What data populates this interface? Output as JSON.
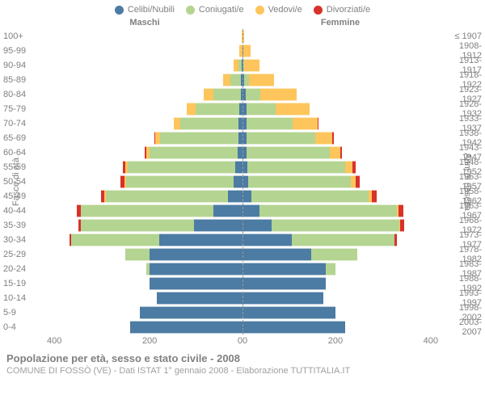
{
  "legend": [
    {
      "label": "Celibi/Nubili",
      "color": "#4c7ba3"
    },
    {
      "label": "Coniugati/e",
      "color": "#b4d491"
    },
    {
      "label": "Vedovi/e",
      "color": "#fdc55b"
    },
    {
      "label": "Divorziati/e",
      "color": "#d8322a"
    }
  ],
  "headers": {
    "male": "Maschi",
    "female": "Femmine"
  },
  "y_left_label": "Fasce di età",
  "y_right_label": "Anni di nascita",
  "x_ticks_left": [
    "400",
    "200",
    "0"
  ],
  "x_ticks_right": [
    "0",
    "200",
    "400"
  ],
  "x_max": 400,
  "title": "Popolazione per età, sesso e stato civile - 2008",
  "subtitle": "COMUNE DI FOSSÒ (VE) - Dati ISTAT 1° gennaio 2008 - Elaborazione TUTTITALIA.IT",
  "colors": {
    "celibi": "#4c7ba3",
    "coniugati": "#b4d491",
    "vedovi": "#fdc55b",
    "divorziati": "#d8322a",
    "text": "#808080",
    "bg": "#ffffff",
    "center_line": "#999999"
  },
  "rows": [
    {
      "age": "100+",
      "year": "≤ 1907",
      "m": {
        "cel": 0,
        "con": 0,
        "ved": 2,
        "div": 0
      },
      "f": {
        "cel": 0,
        "con": 0,
        "ved": 3,
        "div": 0
      }
    },
    {
      "age": "95-99",
      "year": "1908-1912",
      "m": {
        "cel": 0,
        "con": 0,
        "ved": 6,
        "div": 0
      },
      "f": {
        "cel": 2,
        "con": 0,
        "ved": 14,
        "div": 0
      }
    },
    {
      "age": "90-94",
      "year": "1913-1917",
      "m": {
        "cel": 2,
        "con": 6,
        "ved": 10,
        "div": 0
      },
      "f": {
        "cel": 2,
        "con": 2,
        "ved": 30,
        "div": 0
      }
    },
    {
      "age": "85-89",
      "year": "1918-1922",
      "m": {
        "cel": 3,
        "con": 22,
        "ved": 14,
        "div": 0
      },
      "f": {
        "cel": 4,
        "con": 10,
        "ved": 50,
        "div": 0
      }
    },
    {
      "age": "80-84",
      "year": "1923-1927",
      "m": {
        "cel": 4,
        "con": 55,
        "ved": 20,
        "div": 0
      },
      "f": {
        "cel": 6,
        "con": 30,
        "ved": 75,
        "div": 0
      }
    },
    {
      "age": "75-79",
      "year": "1928-1932",
      "m": {
        "cel": 6,
        "con": 90,
        "ved": 18,
        "div": 0
      },
      "f": {
        "cel": 8,
        "con": 60,
        "ved": 70,
        "div": 0
      }
    },
    {
      "age": "70-74",
      "year": "1933-1937",
      "m": {
        "cel": 8,
        "con": 120,
        "ved": 12,
        "div": 0
      },
      "f": {
        "cel": 8,
        "con": 95,
        "ved": 50,
        "div": 2
      }
    },
    {
      "age": "65-69",
      "year": "1938-1942",
      "m": {
        "cel": 8,
        "con": 160,
        "ved": 10,
        "div": 2
      },
      "f": {
        "cel": 8,
        "con": 140,
        "ved": 35,
        "div": 3
      }
    },
    {
      "age": "60-64",
      "year": "1943-1947",
      "m": {
        "cel": 10,
        "con": 180,
        "ved": 6,
        "div": 4
      },
      "f": {
        "cel": 8,
        "con": 170,
        "ved": 22,
        "div": 4
      }
    },
    {
      "age": "55-59",
      "year": "1948-1952",
      "m": {
        "cel": 15,
        "con": 220,
        "ved": 4,
        "div": 6
      },
      "f": {
        "cel": 10,
        "con": 200,
        "ved": 15,
        "div": 6
      }
    },
    {
      "age": "50-54",
      "year": "1953-1957",
      "m": {
        "cel": 18,
        "con": 220,
        "ved": 3,
        "div": 8
      },
      "f": {
        "cel": 12,
        "con": 210,
        "ved": 10,
        "div": 8
      }
    },
    {
      "age": "45-49",
      "year": "1958-1962",
      "m": {
        "cel": 30,
        "con": 250,
        "ved": 2,
        "div": 8
      },
      "f": {
        "cel": 18,
        "con": 240,
        "ved": 6,
        "div": 10
      }
    },
    {
      "age": "40-44",
      "year": "1963-1967",
      "m": {
        "cel": 60,
        "con": 270,
        "ved": 1,
        "div": 8
      },
      "f": {
        "cel": 35,
        "con": 280,
        "ved": 4,
        "div": 10
      }
    },
    {
      "age": "35-39",
      "year": "1968-1972",
      "m": {
        "cel": 100,
        "con": 230,
        "ved": 0,
        "div": 6
      },
      "f": {
        "cel": 60,
        "con": 260,
        "ved": 2,
        "div": 8
      }
    },
    {
      "age": "30-34",
      "year": "1973-1977",
      "m": {
        "cel": 170,
        "con": 180,
        "ved": 0,
        "div": 4
      },
      "f": {
        "cel": 100,
        "con": 210,
        "ved": 0,
        "div": 6
      }
    },
    {
      "age": "25-29",
      "year": "1978-1982",
      "m": {
        "cel": 190,
        "con": 50,
        "ved": 0,
        "div": 0
      },
      "f": {
        "cel": 140,
        "con": 95,
        "ved": 0,
        "div": 0
      }
    },
    {
      "age": "20-24",
      "year": "1983-1987",
      "m": {
        "cel": 190,
        "con": 6,
        "ved": 0,
        "div": 0
      },
      "f": {
        "cel": 170,
        "con": 20,
        "ved": 0,
        "div": 0
      }
    },
    {
      "age": "15-19",
      "year": "1988-1992",
      "m": {
        "cel": 190,
        "con": 0,
        "ved": 0,
        "div": 0
      },
      "f": {
        "cel": 170,
        "con": 0,
        "ved": 0,
        "div": 0
      }
    },
    {
      "age": "10-14",
      "year": "1993-1997",
      "m": {
        "cel": 175,
        "con": 0,
        "ved": 0,
        "div": 0
      },
      "f": {
        "cel": 165,
        "con": 0,
        "ved": 0,
        "div": 0
      }
    },
    {
      "age": "5-9",
      "year": "1998-2002",
      "m": {
        "cel": 210,
        "con": 0,
        "ved": 0,
        "div": 0
      },
      "f": {
        "cel": 190,
        "con": 0,
        "ved": 0,
        "div": 0
      }
    },
    {
      "age": "0-4",
      "year": "2003-2007",
      "m": {
        "cel": 230,
        "con": 0,
        "ved": 0,
        "div": 0
      },
      "f": {
        "cel": 210,
        "con": 0,
        "ved": 0,
        "div": 0
      }
    }
  ]
}
